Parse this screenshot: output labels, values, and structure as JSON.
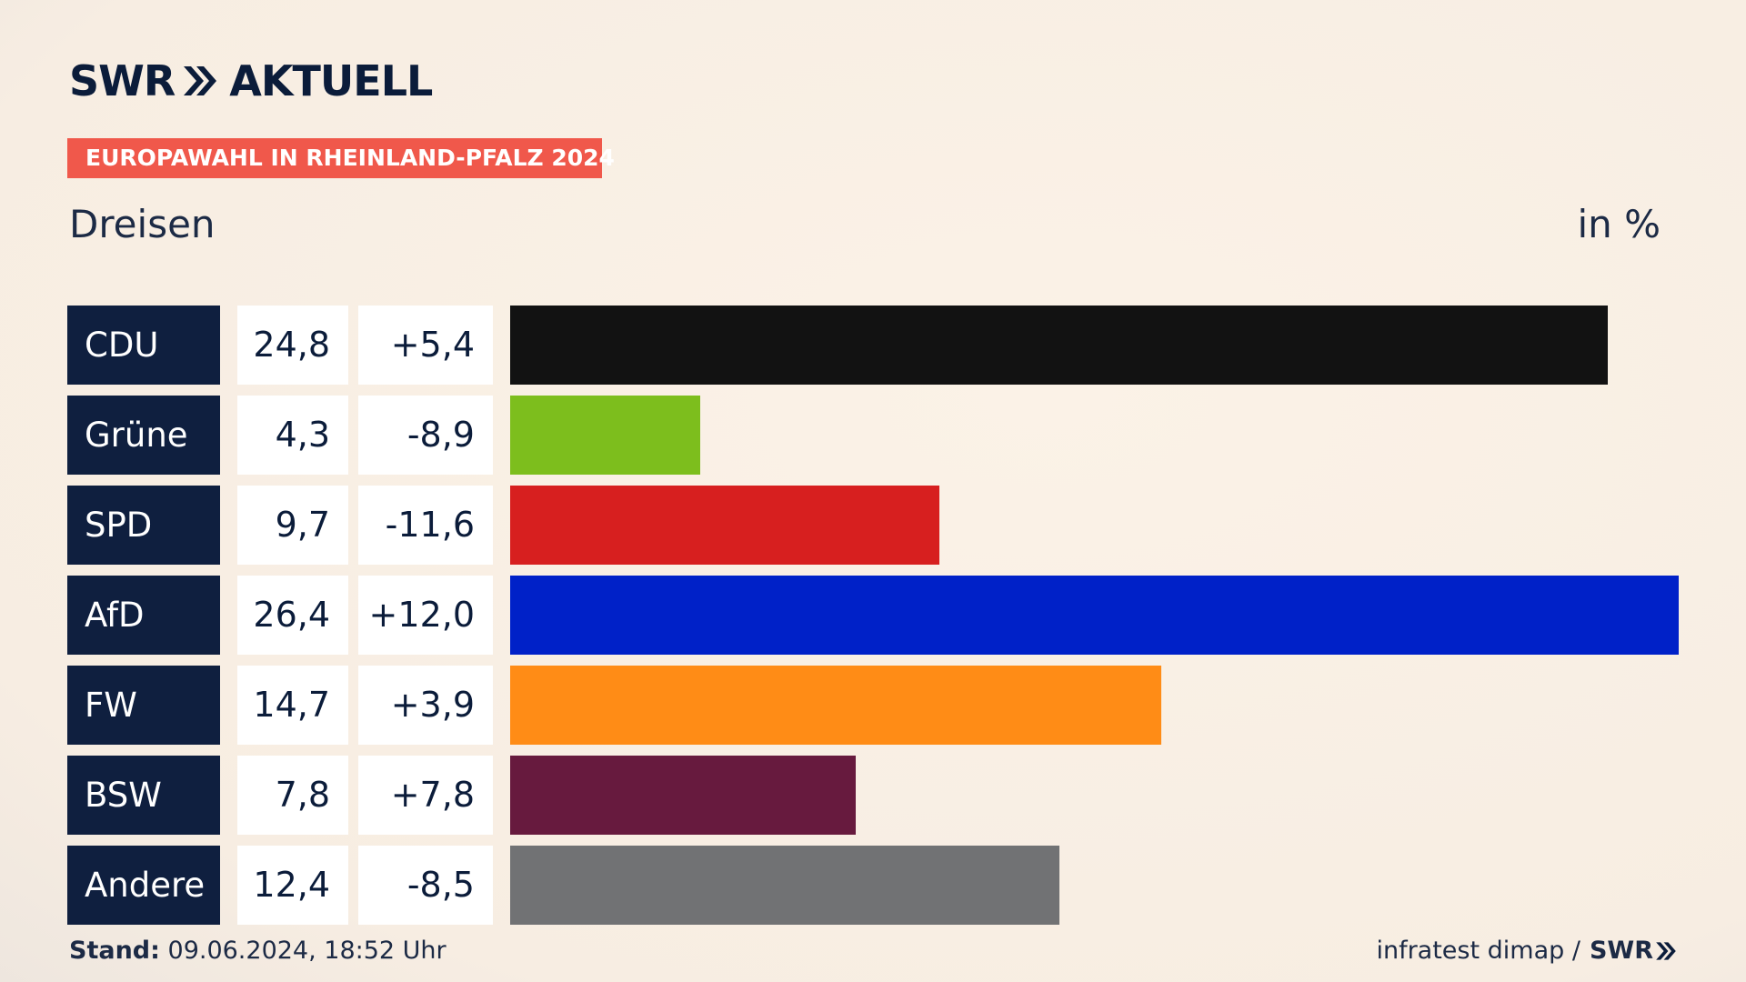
{
  "header": {
    "logo_left": "SWR",
    "logo_right": "AKTUELL",
    "badge": "EUROPAWAHL IN RHEINLAND-PFALZ 2024",
    "subtitle": "Dreisen",
    "unit": "in %"
  },
  "footer": {
    "stand_label": "Stand:",
    "stand_value": "09.06.2024, 18:52 Uhr",
    "source": "infratest dimap /",
    "source_brand": "SWR"
  },
  "chart_data": {
    "type": "bar",
    "orientation": "horizontal",
    "title": "Dreisen",
    "unit": "in %",
    "categories": [
      "CDU",
      "Grüne",
      "SPD",
      "AfD",
      "FW",
      "BSW",
      "Andere"
    ],
    "values": [
      24.8,
      4.3,
      9.7,
      26.4,
      14.7,
      7.8,
      12.4
    ],
    "value_labels": [
      "24,8",
      "4,3",
      "9,7",
      "26,4",
      "14,7",
      "7,8",
      "12,4"
    ],
    "change_labels": [
      "+5,4",
      "-8,9",
      "-11,6",
      "+12,0",
      "+3,9",
      "+7,8",
      "-8,5"
    ],
    "changes": [
      5.4,
      -8.9,
      -11.6,
      12.0,
      3.9,
      7.8,
      -8.5
    ],
    "colors": [
      "#121212",
      "#7dbe1d",
      "#d71f1f",
      "#0021c8",
      "#ff8c16",
      "#671a3e",
      "#717274"
    ],
    "xlim": [
      0,
      26.4
    ]
  }
}
